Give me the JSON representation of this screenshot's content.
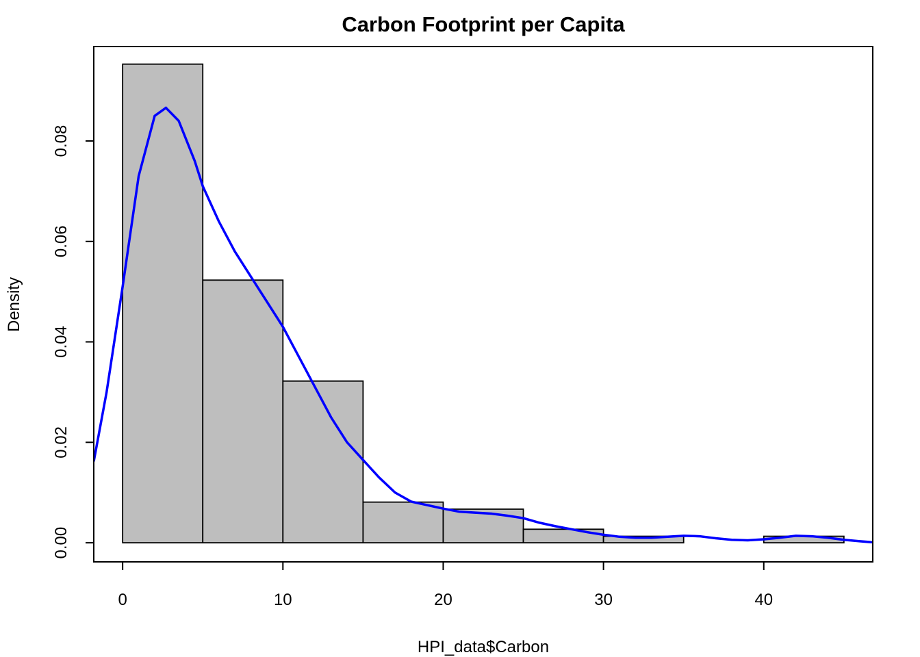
{
  "chart_data": {
    "type": "bar",
    "title": "Carbon Footprint per Capita",
    "xlabel": "HPI_data$Carbon",
    "ylabel": "Density",
    "xlim": [
      -1.8,
      46.8
    ],
    "ylim": [
      -0.0038,
      0.0988
    ],
    "grid": false,
    "legend": "none",
    "x_ticks": [
      0,
      10,
      20,
      30,
      40
    ],
    "y_ticks": [
      0.0,
      0.02,
      0.04,
      0.06,
      0.08
    ],
    "y_tick_labels": [
      "0.00",
      "0.02",
      "0.04",
      "0.06",
      "0.08"
    ],
    "histogram": {
      "bin_edges": [
        0,
        5,
        10,
        15,
        20,
        25,
        30,
        35,
        40,
        45
      ],
      "densities": [
        0.0953,
        0.0523,
        0.0322,
        0.0081,
        0.0067,
        0.0027,
        0.0013,
        0.0,
        0.0013
      ],
      "fill_color": "#bebebe",
      "edge_color": "#000000"
    },
    "density_curve": {
      "color": "#0000ff",
      "x": [
        -1.8,
        -1.0,
        0.0,
        1.0,
        2.0,
        2.7,
        3.5,
        4.5,
        5.0,
        6.0,
        7.0,
        8.0,
        9.0,
        10.0,
        11.0,
        12.0,
        13.0,
        14.0,
        15.0,
        16.0,
        17.0,
        18.0,
        19.0,
        20.0,
        21.0,
        22.0,
        23.0,
        24.0,
        25.0,
        26.0,
        27.0,
        28.0,
        29.0,
        30.0,
        31.0,
        32.0,
        33.0,
        34.0,
        35.0,
        36.0,
        37.0,
        38.0,
        39.0,
        40.0,
        41.0,
        42.0,
        43.0,
        44.0,
        45.0,
        46.0,
        46.8
      ],
      "y": [
        0.0162,
        0.03,
        0.051,
        0.073,
        0.085,
        0.0866,
        0.084,
        0.076,
        0.071,
        0.064,
        0.058,
        0.053,
        0.048,
        0.043,
        0.037,
        0.031,
        0.025,
        0.02,
        0.0165,
        0.013,
        0.01,
        0.0082,
        0.0075,
        0.0068,
        0.0062,
        0.006,
        0.0058,
        0.0054,
        0.0049,
        0.004,
        0.0033,
        0.0027,
        0.0021,
        0.0016,
        0.0012,
        0.001,
        0.001,
        0.0012,
        0.0014,
        0.0013,
        0.0009,
        0.0006,
        0.0005,
        0.0007,
        0.001,
        0.0014,
        0.0013,
        0.001,
        0.0006,
        0.0003,
        0.0001
      ]
    }
  }
}
